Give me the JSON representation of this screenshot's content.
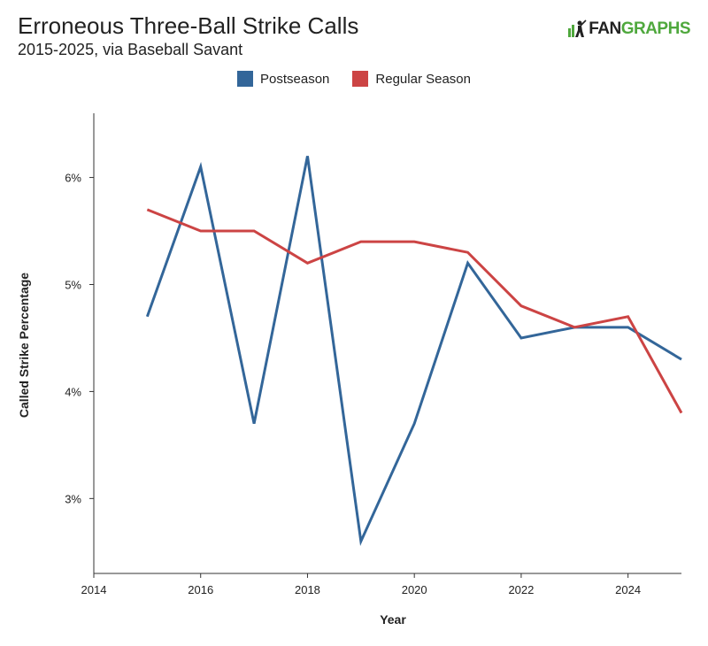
{
  "header": {
    "title": "Erroneous Three-Ball Strike Calls",
    "subtitle": "2015-2025, via Baseball Savant",
    "logo_fan": "FAN",
    "logo_graphs": "GRAPHS"
  },
  "colors": {
    "postseason": "#336699",
    "regular_season": "#cc4444",
    "axis": "#333333"
  },
  "chart_data": {
    "type": "line",
    "xlabel": "Year",
    "ylabel": "Called Strike Percentage",
    "xlim": [
      2014,
      2025
    ],
    "ylim": [
      2.3,
      6.6
    ],
    "x_ticks": [
      2014,
      2016,
      2018,
      2020,
      2022,
      2024
    ],
    "y_ticks": [
      3,
      4,
      5,
      6
    ],
    "y_tick_suffix": "%",
    "grid": false,
    "legend_position": "top-center",
    "x": [
      2015,
      2016,
      2017,
      2018,
      2019,
      2020,
      2021,
      2022,
      2023,
      2024,
      2025
    ],
    "series": [
      {
        "name": "Postseason",
        "color": "#336699",
        "values": [
          4.7,
          6.1,
          3.7,
          6.2,
          2.6,
          3.7,
          5.2,
          4.5,
          4.6,
          4.6,
          4.3
        ]
      },
      {
        "name": "Regular Season",
        "color": "#cc4444",
        "values": [
          5.7,
          5.5,
          5.5,
          5.2,
          5.4,
          5.4,
          5.3,
          4.8,
          4.6,
          4.7,
          3.8
        ]
      }
    ]
  }
}
